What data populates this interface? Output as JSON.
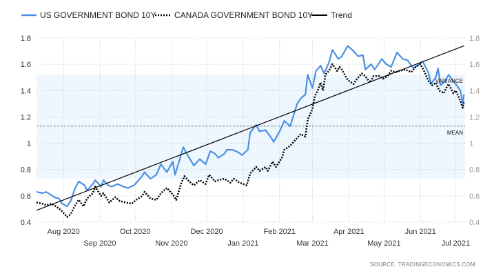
{
  "chart_data": {
    "type": "line",
    "title": "",
    "xlabel": "",
    "ylabel": "",
    "xlim": [
      "2020-07-09",
      "2021-07-09"
    ],
    "ylim": [
      0.4,
      1.8
    ],
    "yticks": [
      0.4,
      0.6,
      0.8,
      1,
      1.2,
      1.4,
      1.6,
      1.8
    ],
    "ytick_labels": [
      "0.4",
      "0.6",
      "0.8",
      "1",
      "1.2",
      "1.4",
      "1.6",
      "1.8"
    ],
    "xticks": [
      {
        "date": "2020-08-01",
        "label": "Aug 2020",
        "row": 0
      },
      {
        "date": "2020-09-01",
        "label": "Sep 2020",
        "row": 1
      },
      {
        "date": "2020-10-01",
        "label": "Oct 2020",
        "row": 0
      },
      {
        "date": "2020-11-01",
        "label": "Nov 2020",
        "row": 1
      },
      {
        "date": "2020-12-01",
        "label": "Dec 2020",
        "row": 0
      },
      {
        "date": "2021-01-01",
        "label": "Jan 2021",
        "row": 1
      },
      {
        "date": "2021-02-01",
        "label": "Feb 2021",
        "row": 0
      },
      {
        "date": "2021-03-01",
        "label": "Mar 2021",
        "row": 1
      },
      {
        "date": "2021-04-01",
        "label": "Apr 2021",
        "row": 0
      },
      {
        "date": "2021-05-01",
        "label": "May 2021",
        "row": 1
      },
      {
        "date": "2021-06-01",
        "label": "Jun 2021",
        "row": 0
      },
      {
        "date": "2021-07-01",
        "label": "Jul 2021",
        "row": 1
      }
    ],
    "grid": true,
    "legend_position": "top-left",
    "series": [
      {
        "name": "US GOVERNMENT BOND 10Y",
        "color": "#4a90e2",
        "style": "solid",
        "dates": [
          "2020-07-09",
          "2020-07-14",
          "2020-07-17",
          "2020-07-21",
          "2020-07-24",
          "2020-07-28",
          "2020-07-31",
          "2020-08-04",
          "2020-08-07",
          "2020-08-11",
          "2020-08-14",
          "2020-08-19",
          "2020-08-21",
          "2020-08-26",
          "2020-08-28",
          "2020-09-02",
          "2020-09-04",
          "2020-09-08",
          "2020-09-11",
          "2020-09-16",
          "2020-09-21",
          "2020-09-25",
          "2020-09-30",
          "2020-10-06",
          "2020-10-09",
          "2020-10-14",
          "2020-10-19",
          "2020-10-23",
          "2020-10-28",
          "2020-11-02",
          "2020-11-04",
          "2020-11-09",
          "2020-11-11",
          "2020-11-16",
          "2020-11-20",
          "2020-11-25",
          "2020-11-30",
          "2020-12-04",
          "2020-12-08",
          "2020-12-11",
          "2020-12-16",
          "2020-12-18",
          "2020-12-23",
          "2020-12-28",
          "2020-12-31",
          "2021-01-05",
          "2021-01-07",
          "2021-01-12",
          "2021-01-15",
          "2021-01-20",
          "2021-01-25",
          "2021-01-27",
          "2021-02-01",
          "2021-02-05",
          "2021-02-10",
          "2021-02-16",
          "2021-02-19",
          "2021-02-23",
          "2021-02-25",
          "2021-03-01",
          "2021-03-04",
          "2021-03-08",
          "2021-03-11",
          "2021-03-15",
          "2021-03-18",
          "2021-03-23",
          "2021-03-26",
          "2021-03-31",
          "2021-04-05",
          "2021-04-09",
          "2021-04-13",
          "2021-04-15",
          "2021-04-20",
          "2021-04-23",
          "2021-04-29",
          "2021-05-03",
          "2021-05-07",
          "2021-05-12",
          "2021-05-17",
          "2021-05-21",
          "2021-05-26",
          "2021-06-01",
          "2021-06-03",
          "2021-06-08",
          "2021-06-10",
          "2021-06-14",
          "2021-06-16",
          "2021-06-18",
          "2021-06-22",
          "2021-06-25",
          "2021-06-29",
          "2021-07-01",
          "2021-07-05",
          "2021-07-06",
          "2021-07-07",
          "2021-07-08"
        ],
        "values": [
          0.63,
          0.62,
          0.63,
          0.61,
          0.59,
          0.58,
          0.54,
          0.52,
          0.56,
          0.66,
          0.71,
          0.68,
          0.64,
          0.69,
          0.72,
          0.67,
          0.72,
          0.68,
          0.67,
          0.69,
          0.67,
          0.66,
          0.68,
          0.74,
          0.78,
          0.73,
          0.76,
          0.84,
          0.78,
          0.86,
          0.76,
          0.91,
          0.97,
          0.89,
          0.83,
          0.88,
          0.84,
          0.94,
          0.92,
          0.89,
          0.92,
          0.95,
          0.95,
          0.93,
          0.91,
          0.95,
          1.08,
          1.14,
          1.09,
          1.1,
          1.04,
          1.01,
          1.09,
          1.17,
          1.13,
          1.3,
          1.34,
          1.37,
          1.52,
          1.42,
          1.55,
          1.59,
          1.53,
          1.61,
          1.71,
          1.64,
          1.66,
          1.74,
          1.7,
          1.66,
          1.67,
          1.56,
          1.6,
          1.56,
          1.64,
          1.6,
          1.58,
          1.69,
          1.64,
          1.63,
          1.57,
          1.61,
          1.62,
          1.53,
          1.45,
          1.5,
          1.57,
          1.44,
          1.47,
          1.52,
          1.47,
          1.45,
          1.4,
          1.35,
          1.3,
          1.37
        ]
      },
      {
        "name": "CANADA GOVERNMENT BOND 10Y",
        "color": "#000000",
        "style": "dotted",
        "dates": [
          "2020-07-09",
          "2020-07-14",
          "2020-07-17",
          "2020-07-22",
          "2020-07-27",
          "2020-07-30",
          "2020-08-04",
          "2020-08-07",
          "2020-08-11",
          "2020-08-14",
          "2020-08-18",
          "2020-08-21",
          "2020-08-26",
          "2020-08-28",
          "2020-09-02",
          "2020-09-04",
          "2020-09-09",
          "2020-09-14",
          "2020-09-18",
          "2020-09-23",
          "2020-09-28",
          "2020-10-02",
          "2020-10-07",
          "2020-10-09",
          "2020-10-14",
          "2020-10-19",
          "2020-10-23",
          "2020-10-28",
          "2020-11-02",
          "2020-11-05",
          "2020-11-09",
          "2020-11-12",
          "2020-11-16",
          "2020-11-20",
          "2020-11-25",
          "2020-11-30",
          "2020-12-03",
          "2020-12-08",
          "2020-12-11",
          "2020-12-16",
          "2020-12-21",
          "2020-12-24",
          "2020-12-29",
          "2021-01-04",
          "2021-01-07",
          "2021-01-12",
          "2021-01-15",
          "2021-01-20",
          "2021-01-22",
          "2021-01-26",
          "2021-01-29",
          "2021-02-03",
          "2021-02-05",
          "2021-02-10",
          "2021-02-16",
          "2021-02-19",
          "2021-02-23",
          "2021-02-25",
          "2021-03-01",
          "2021-03-03",
          "2021-03-05",
          "2021-03-08",
          "2021-03-10",
          "2021-03-12",
          "2021-03-15",
          "2021-03-18",
          "2021-03-22",
          "2021-03-24",
          "2021-03-26",
          "2021-03-31",
          "2021-04-05",
          "2021-04-08",
          "2021-04-12",
          "2021-04-15",
          "2021-04-19",
          "2021-04-22",
          "2021-04-27",
          "2021-04-30",
          "2021-05-04",
          "2021-05-07",
          "2021-05-11",
          "2021-05-14",
          "2021-05-19",
          "2021-05-24",
          "2021-05-28",
          "2021-06-01",
          "2021-06-04",
          "2021-06-08",
          "2021-06-11",
          "2021-06-14",
          "2021-06-17",
          "2021-06-21",
          "2021-06-23",
          "2021-06-25",
          "2021-06-29",
          "2021-07-01",
          "2021-07-05",
          "2021-07-07",
          "2021-07-08"
        ],
        "values": [
          0.55,
          0.54,
          0.53,
          0.54,
          0.51,
          0.49,
          0.44,
          0.46,
          0.53,
          0.57,
          0.52,
          0.58,
          0.62,
          0.67,
          0.6,
          0.62,
          0.55,
          0.59,
          0.56,
          0.55,
          0.54,
          0.57,
          0.6,
          0.63,
          0.58,
          0.57,
          0.62,
          0.66,
          0.61,
          0.57,
          0.69,
          0.75,
          0.71,
          0.68,
          0.72,
          0.69,
          0.76,
          0.71,
          0.72,
          0.73,
          0.7,
          0.73,
          0.7,
          0.68,
          0.77,
          0.82,
          0.79,
          0.82,
          0.79,
          0.86,
          0.82,
          0.89,
          0.95,
          0.98,
          1.04,
          1.07,
          1.05,
          1.18,
          1.26,
          1.36,
          1.39,
          1.46,
          1.4,
          1.52,
          1.55,
          1.6,
          1.55,
          1.58,
          1.56,
          1.48,
          1.45,
          1.49,
          1.53,
          1.51,
          1.46,
          1.51,
          1.51,
          1.49,
          1.51,
          1.55,
          1.54,
          1.55,
          1.56,
          1.54,
          1.58,
          1.6,
          1.55,
          1.47,
          1.44,
          1.46,
          1.4,
          1.38,
          1.42,
          1.45,
          1.38,
          1.4,
          1.32,
          1.27,
          1.31
        ]
      },
      {
        "name": "Trend",
        "color": "#000000",
        "style": "solid",
        "dates": [
          "2020-07-09",
          "2021-07-08"
        ],
        "values": [
          0.49,
          1.74
        ]
      }
    ],
    "annotations": {
      "variance_band": {
        "label": "VARIANCE",
        "range": [
          0.73,
          1.52
        ],
        "color": "#eef6fe"
      },
      "mean_line": {
        "label": "MEAN",
        "value": 1.13
      }
    },
    "source": "SOURCE:  TRADINGECONOMICS.COM"
  }
}
